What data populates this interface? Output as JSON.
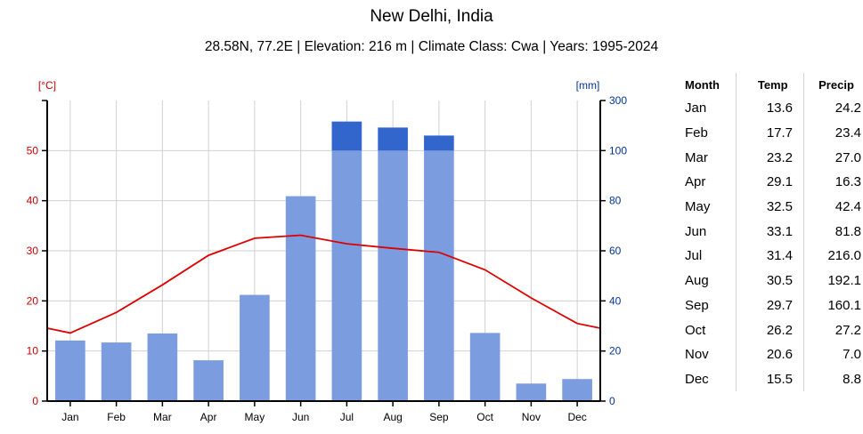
{
  "title": "New Delhi, India",
  "subtitle": "28.58N, 77.2E | Elevation: 216 m | Climate Class: Cwa | Years: 1995-2024",
  "colors": {
    "temp_line": "#dd0000",
    "temp_axis": "#cc0000",
    "precip_bar": "#7b9de0",
    "precip_bar_excess": "#3366cc",
    "precip_axis": "#003399",
    "grid": "#d0d0d0"
  },
  "chart_data": {
    "type": "bar+line",
    "categories": [
      "Jan",
      "Feb",
      "Mar",
      "Apr",
      "May",
      "Jun",
      "Jul",
      "Aug",
      "Sep",
      "Oct",
      "Nov",
      "Dec"
    ],
    "series": [
      {
        "name": "Temp",
        "kind": "line",
        "axis": "left",
        "values": [
          13.6,
          17.7,
          23.2,
          29.1,
          32.5,
          33.1,
          31.4,
          30.5,
          29.7,
          26.2,
          20.6,
          15.5
        ]
      },
      {
        "name": "Precip",
        "kind": "bar",
        "axis": "right",
        "values": [
          24.2,
          23.4,
          27.0,
          16.3,
          42.4,
          81.8,
          216.0,
          192.1,
          160.1,
          27.2,
          7.0,
          8.8
        ]
      }
    ],
    "y_left": {
      "label": "[°C]",
      "min": 0,
      "max": 60,
      "ticks": [
        0,
        10,
        20,
        30,
        40,
        50
      ]
    },
    "y_right": {
      "label": "[mm]",
      "ticks": [
        0,
        20,
        40,
        60,
        80,
        100,
        300
      ],
      "scale": "linear 0-100, compressed 100-300",
      "break_at": 100
    },
    "grid": true
  },
  "table": {
    "headers": [
      "Month",
      "Temp",
      "Precip"
    ],
    "rows": [
      [
        "Jan",
        "13.6",
        "24.2"
      ],
      [
        "Feb",
        "17.7",
        "23.4"
      ],
      [
        "Mar",
        "23.2",
        "27.0"
      ],
      [
        "Apr",
        "29.1",
        "16.3"
      ],
      [
        "May",
        "32.5",
        "42.4"
      ],
      [
        "Jun",
        "33.1",
        "81.8"
      ],
      [
        "Jul",
        "31.4",
        "216.0"
      ],
      [
        "Aug",
        "30.5",
        "192.1"
      ],
      [
        "Sep",
        "29.7",
        "160.1"
      ],
      [
        "Oct",
        "26.2",
        "27.2"
      ],
      [
        "Nov",
        "20.6",
        "7.0"
      ],
      [
        "Dec",
        "15.5",
        "8.8"
      ]
    ]
  }
}
